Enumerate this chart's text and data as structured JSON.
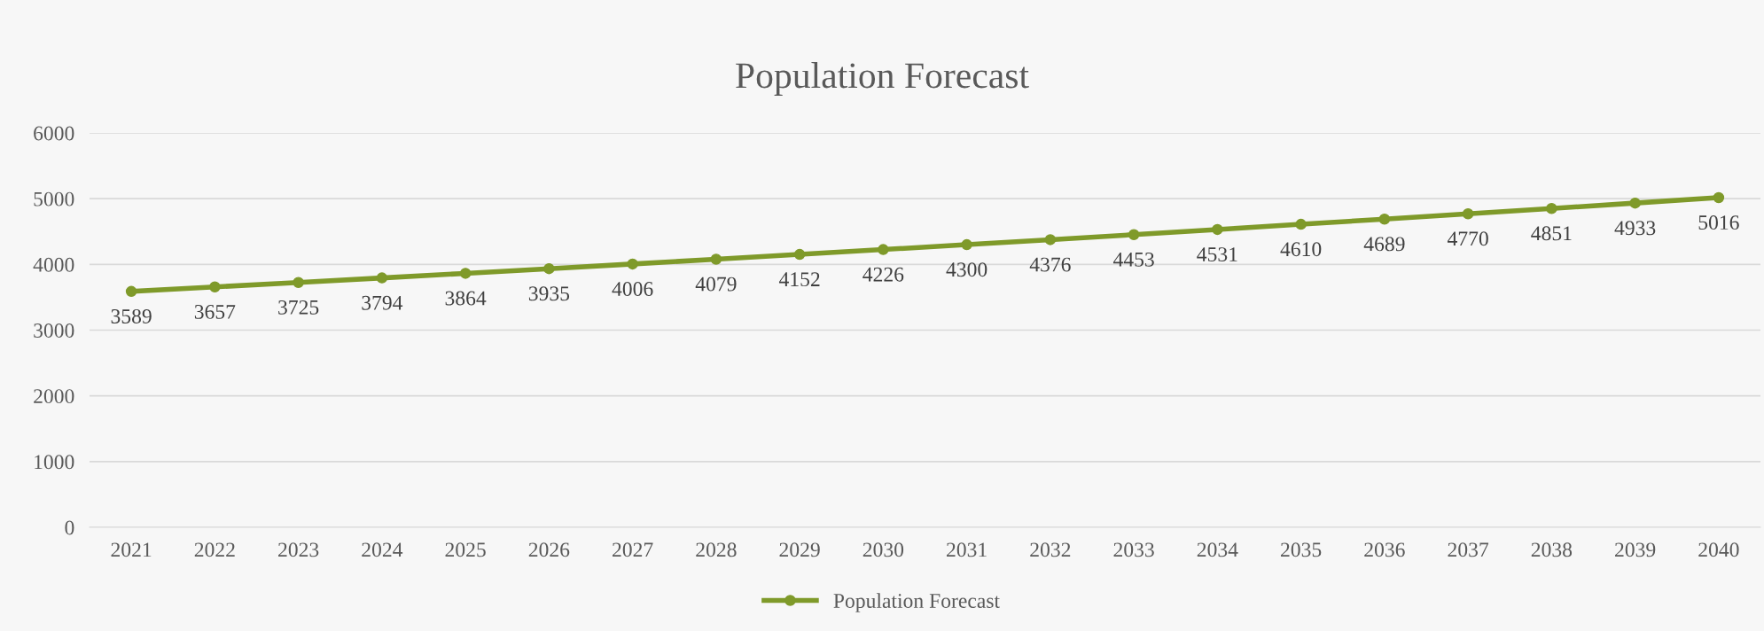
{
  "chart_data": {
    "type": "line",
    "title": "Population Forecast",
    "categories": [
      "2021",
      "2022",
      "2023",
      "2024",
      "2025",
      "2026",
      "2027",
      "2028",
      "2029",
      "2030",
      "2031",
      "2032",
      "2033",
      "2034",
      "2035",
      "2036",
      "2037",
      "2038",
      "2039",
      "2040"
    ],
    "series": [
      {
        "name": "Population Forecast",
        "color": "#7f9a2a",
        "values": [
          3589,
          3657,
          3725,
          3794,
          3864,
          3935,
          4006,
          4079,
          4152,
          4226,
          4300,
          4376,
          4453,
          4531,
          4610,
          4689,
          4770,
          4851,
          4933,
          5016
        ]
      }
    ],
    "ylim": [
      0,
      6000
    ],
    "yticks": [
      0,
      1000,
      2000,
      3000,
      4000,
      5000,
      6000
    ],
    "grid": "y",
    "legend": "bottom",
    "marker": "circle",
    "line_style": "solid",
    "data_labels": true
  }
}
